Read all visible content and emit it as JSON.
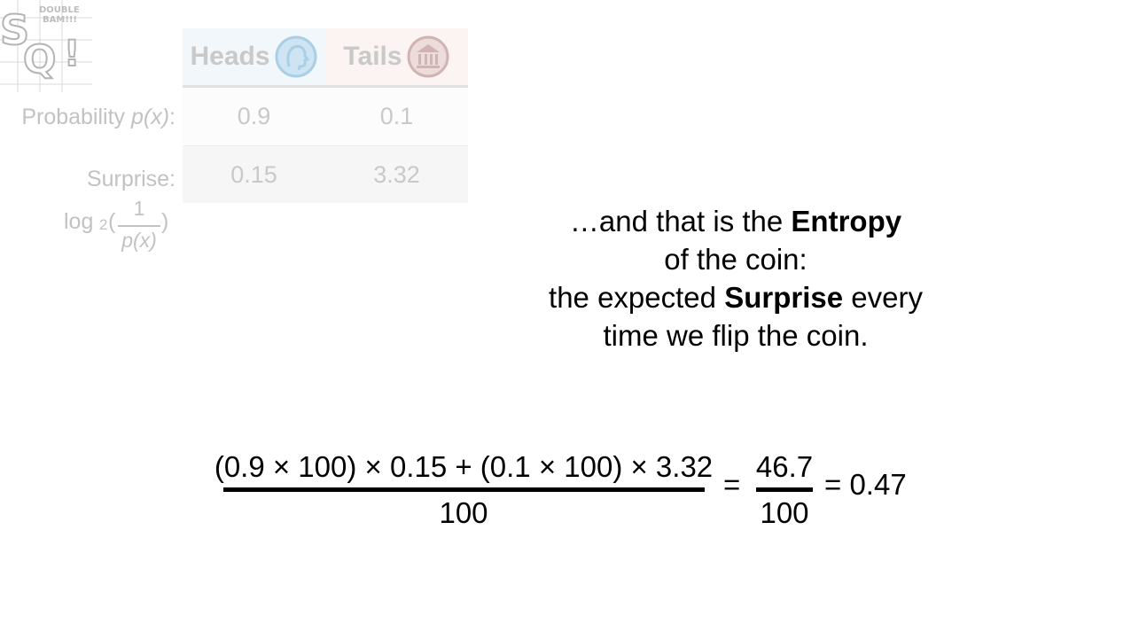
{
  "logo": {
    "letters": "SQ!",
    "burst_text": "DOUBLE BAM!!!"
  },
  "table": {
    "headers": [
      {
        "label": "Heads",
        "icon": "heads-coin-icon"
      },
      {
        "label": "Tails",
        "icon": "tails-coin-icon"
      }
    ],
    "rows": [
      {
        "label_prefix": "Probability ",
        "label_var": "p(x)",
        "label_suffix": ":",
        "values": [
          "0.9",
          "0.1"
        ]
      },
      {
        "label": "Surprise:",
        "values": [
          "0.15",
          "3.32"
        ]
      }
    ],
    "surprise_formula": {
      "log": "log",
      "base": "2",
      "numerator": "1",
      "denominator": "p(x)"
    }
  },
  "explanation": {
    "line1_pre": "…and that is the ",
    "line1_bold": "Entropy",
    "line2": "of the coin:",
    "line3_pre": "the expected ",
    "line3_bold": "Surprise",
    "line3_post": " every",
    "line4": "time we flip the coin."
  },
  "equation": {
    "big_numerator": "(0.9 × 100) × 0.15 + (0.1 × 100) × 3.32",
    "big_denominator": "100",
    "equals1": "=",
    "small_numerator": "46.7",
    "small_denominator": "100",
    "equals2": "= 0.47"
  },
  "colors": {
    "faded_text": "#c9c9c9",
    "heads_bg": "#f2f7fb",
    "tails_bg": "#fcf3f3",
    "icon_heads": "#a9cfe6",
    "icon_tails": "#d0b3b3"
  }
}
